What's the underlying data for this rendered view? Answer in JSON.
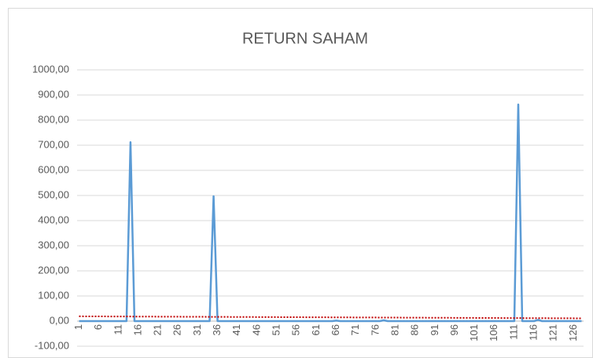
{
  "chart_data": {
    "type": "line",
    "title": "RETURN SAHAM",
    "categories": [
      "1",
      null,
      null,
      null,
      null,
      "6",
      null,
      null,
      null,
      null,
      "11",
      null,
      null,
      null,
      null,
      "16",
      null,
      null,
      null,
      null,
      "21",
      null,
      null,
      null,
      null,
      "26",
      null,
      null,
      null,
      null,
      "31",
      null,
      null,
      null,
      null,
      "36",
      null,
      null,
      null,
      null,
      "41",
      null,
      null,
      null,
      null,
      "46",
      null,
      null,
      null,
      null,
      "51",
      null,
      null,
      null,
      null,
      "56",
      null,
      null,
      null,
      null,
      "61",
      null,
      null,
      null,
      null,
      "66",
      null,
      null,
      null,
      null,
      "71",
      null,
      null,
      null,
      null,
      "76",
      null,
      null,
      null,
      null,
      "81",
      null,
      null,
      null,
      null,
      "86",
      null,
      null,
      null,
      null,
      "91",
      null,
      null,
      null,
      null,
      "96",
      null,
      null,
      null,
      null,
      "101",
      null,
      null,
      null,
      null,
      "106",
      null,
      null,
      null,
      null,
      "111",
      null,
      null,
      null,
      null,
      "116",
      null,
      null,
      null,
      null,
      "121",
      null,
      null,
      null,
      null,
      "126",
      null,
      null
    ],
    "series": [
      {
        "color": "#5b9bd5",
        "values": [
          0,
          0,
          0,
          0,
          0,
          0,
          0,
          0,
          0,
          0,
          0,
          0,
          0,
          712,
          0,
          0,
          0,
          0,
          0,
          0,
          0,
          0,
          0,
          0,
          0,
          0,
          0,
          0,
          0,
          0,
          0,
          0,
          0,
          0,
          497,
          0,
          0,
          0,
          0,
          0,
          0,
          0,
          0,
          0,
          0,
          0,
          0,
          0,
          0,
          0,
          0,
          0,
          0,
          0,
          0,
          0,
          0,
          0,
          0,
          0,
          0,
          0,
          0,
          0,
          0,
          2,
          0,
          0,
          0,
          0,
          0,
          0,
          0,
          0,
          0,
          0,
          0,
          3,
          0,
          0,
          0,
          0,
          0,
          0,
          0,
          0,
          0,
          0,
          0,
          0,
          0,
          0,
          0,
          0,
          0,
          0,
          0,
          0,
          0,
          0,
          0,
          0,
          0,
          0,
          0,
          0,
          0,
          0,
          0,
          0,
          0,
          862,
          0,
          0,
          0,
          0,
          5,
          0,
          0,
          0,
          0,
          0,
          0,
          0,
          0,
          0,
          0,
          0
        ]
      }
    ],
    "trendline": {
      "color": "#c00000",
      "start": 19,
      "end": 11
    },
    "ylim": [
      -100,
      1000
    ],
    "yticks": [
      {
        "value": -100,
        "label": "-100,00"
      },
      {
        "value": 0,
        "label": "0,00"
      },
      {
        "value": 100,
        "label": "100,00"
      },
      {
        "value": 200,
        "label": "200,00"
      },
      {
        "value": 300,
        "label": "300,00"
      },
      {
        "value": 400,
        "label": "400,00"
      },
      {
        "value": 500,
        "label": "500,00"
      },
      {
        "value": 600,
        "label": "600,00"
      },
      {
        "value": 700,
        "label": "700,00"
      },
      {
        "value": 800,
        "label": "800,00"
      },
      {
        "value": 900,
        "label": "900,00"
      },
      {
        "value": 1000,
        "label": "1000,00"
      }
    ],
    "grid": true
  }
}
